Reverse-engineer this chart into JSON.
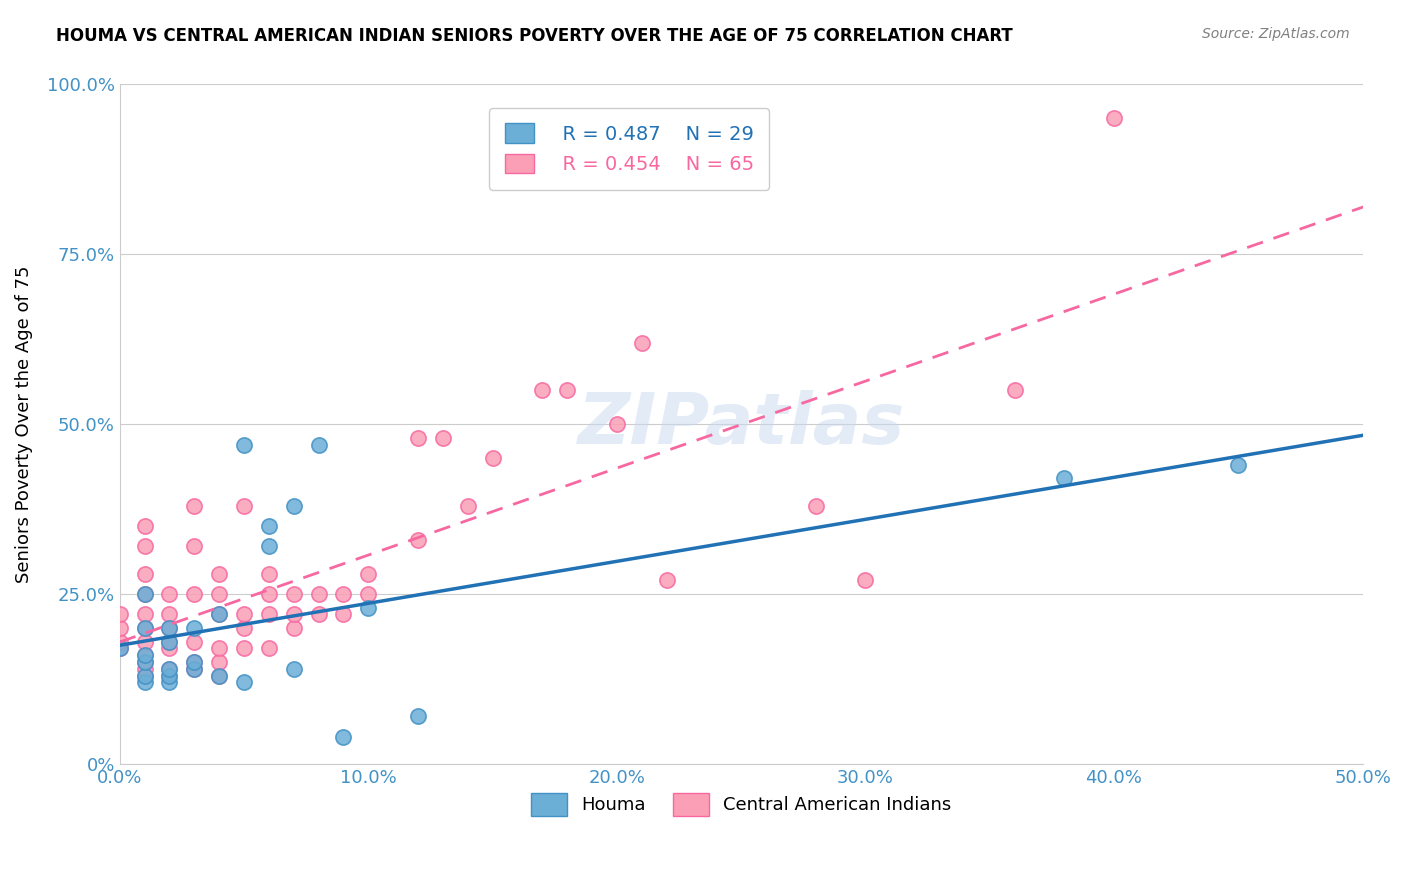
{
  "title": "HOUMA VS CENTRAL AMERICAN INDIAN SENIORS POVERTY OVER THE AGE OF 75 CORRELATION CHART",
  "source": "Source: ZipAtlas.com",
  "ylabel": "Seniors Poverty Over the Age of 75",
  "xlabel": "",
  "xlim": [
    0.0,
    0.5
  ],
  "ylim": [
    0.0,
    1.0
  ],
  "xticks": [
    0.0,
    0.1,
    0.2,
    0.3,
    0.4,
    0.5
  ],
  "xticklabels": [
    "0.0%",
    "10.0%",
    "20.0%",
    "30.0%",
    "40.0%",
    "50.0%"
  ],
  "yticks": [
    0.0,
    0.25,
    0.5,
    0.75,
    1.0
  ],
  "yticklabels": [
    "0%",
    "25.0%",
    "50.0%",
    "75.0%",
    "100.0%"
  ],
  "houma_color": "#6baed6",
  "houma_edge_color": "#4292c6",
  "central_color": "#fa9fb5",
  "central_edge_color": "#f768a1",
  "houma_line_color": "#2171b5",
  "central_line_color": "#f768a1",
  "R_houma": 0.487,
  "N_houma": 29,
  "R_central": 0.454,
  "N_central": 65,
  "watermark": "ZIPatlas",
  "legend_labels": [
    "Houma",
    "Central American Indians"
  ],
  "houma_x": [
    0.0,
    0.01,
    0.01,
    0.01,
    0.01,
    0.01,
    0.01,
    0.02,
    0.02,
    0.02,
    0.02,
    0.02,
    0.03,
    0.03,
    0.03,
    0.04,
    0.04,
    0.05,
    0.05,
    0.06,
    0.06,
    0.07,
    0.07,
    0.08,
    0.09,
    0.1,
    0.12,
    0.38,
    0.45
  ],
  "houma_y": [
    0.17,
    0.12,
    0.13,
    0.15,
    0.16,
    0.2,
    0.25,
    0.12,
    0.13,
    0.14,
    0.18,
    0.2,
    0.14,
    0.15,
    0.2,
    0.13,
    0.22,
    0.12,
    0.47,
    0.32,
    0.35,
    0.14,
    0.38,
    0.47,
    0.04,
    0.23,
    0.07,
    0.42,
    0.44
  ],
  "central_x": [
    0.0,
    0.0,
    0.0,
    0.0,
    0.01,
    0.01,
    0.01,
    0.01,
    0.01,
    0.01,
    0.01,
    0.01,
    0.01,
    0.01,
    0.01,
    0.02,
    0.02,
    0.02,
    0.02,
    0.02,
    0.02,
    0.02,
    0.03,
    0.03,
    0.03,
    0.03,
    0.03,
    0.03,
    0.04,
    0.04,
    0.04,
    0.04,
    0.04,
    0.04,
    0.05,
    0.05,
    0.05,
    0.05,
    0.06,
    0.06,
    0.06,
    0.06,
    0.07,
    0.07,
    0.07,
    0.08,
    0.08,
    0.09,
    0.09,
    0.1,
    0.1,
    0.12,
    0.12,
    0.13,
    0.14,
    0.15,
    0.17,
    0.18,
    0.2,
    0.21,
    0.22,
    0.28,
    0.3,
    0.36,
    0.4
  ],
  "central_y": [
    0.17,
    0.18,
    0.2,
    0.22,
    0.13,
    0.14,
    0.15,
    0.16,
    0.18,
    0.2,
    0.22,
    0.25,
    0.28,
    0.32,
    0.35,
    0.13,
    0.14,
    0.17,
    0.18,
    0.2,
    0.22,
    0.25,
    0.14,
    0.15,
    0.18,
    0.25,
    0.32,
    0.38,
    0.13,
    0.15,
    0.17,
    0.22,
    0.25,
    0.28,
    0.17,
    0.2,
    0.22,
    0.38,
    0.17,
    0.22,
    0.25,
    0.28,
    0.2,
    0.22,
    0.25,
    0.22,
    0.25,
    0.22,
    0.25,
    0.25,
    0.28,
    0.33,
    0.48,
    0.48,
    0.38,
    0.45,
    0.55,
    0.55,
    0.5,
    0.62,
    0.27,
    0.38,
    0.27,
    0.55,
    0.95
  ]
}
